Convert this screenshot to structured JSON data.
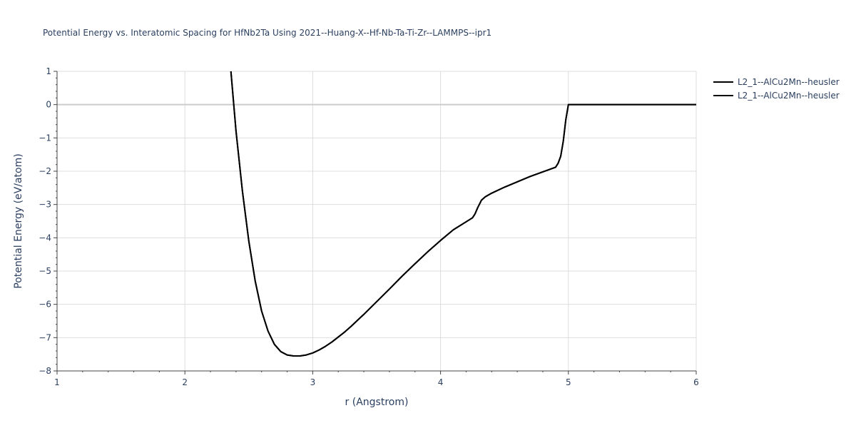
{
  "chart_data": {
    "type": "line",
    "title": "Potential Energy vs. Interatomic Spacing for HfNb2Ta Using 2021--Huang-X--Hf-Nb-Ta-Ti-Zr--LAMMPS--ipr1",
    "xlabel": "r (Angstrom)",
    "ylabel": "Potential Energy (eV/atom)",
    "xlim": [
      1,
      6
    ],
    "ylim": [
      -8,
      1
    ],
    "x_ticks": [
      1,
      2,
      3,
      4,
      5,
      6
    ],
    "y_ticks": [
      1,
      0,
      -1,
      -2,
      -3,
      -4,
      -5,
      -6,
      -7,
      -8
    ],
    "x_tick_labels": [
      "1",
      "2",
      "3",
      "4",
      "5",
      "6"
    ],
    "y_tick_labels": [
      "1",
      "0",
      "−1",
      "−2",
      "−3",
      "−4",
      "−5",
      "−6",
      "−7",
      "−8"
    ],
    "grid": true,
    "legend_position": "top-right",
    "line_color": "#000000",
    "series": [
      {
        "name": "L2_1--AlCu2Mn--heusler",
        "x": [
          2.36,
          2.4,
          2.45,
          2.5,
          2.55,
          2.6,
          2.65,
          2.7,
          2.75,
          2.8,
          2.85,
          2.9,
          2.95,
          3.0,
          3.05,
          3.1,
          3.15,
          3.2,
          3.25,
          3.3,
          3.4,
          3.5,
          3.6,
          3.7,
          3.8,
          3.9,
          4.0,
          4.1,
          4.2,
          4.25,
          4.27,
          4.29,
          4.31,
          4.32,
          4.35,
          4.4,
          4.5,
          4.6,
          4.7,
          4.8,
          4.9,
          4.92,
          4.94,
          4.96,
          4.98,
          5.0,
          5.1,
          5.5,
          6.0
        ],
        "y": [
          1.0,
          -0.8,
          -2.6,
          -4.1,
          -5.3,
          -6.2,
          -6.8,
          -7.2,
          -7.42,
          -7.52,
          -7.55,
          -7.55,
          -7.52,
          -7.46,
          -7.37,
          -7.26,
          -7.13,
          -6.98,
          -6.83,
          -6.66,
          -6.3,
          -5.92,
          -5.54,
          -5.15,
          -4.78,
          -4.42,
          -4.08,
          -3.76,
          -3.52,
          -3.4,
          -3.28,
          -3.1,
          -2.95,
          -2.87,
          -2.77,
          -2.66,
          -2.48,
          -2.32,
          -2.16,
          -2.02,
          -1.88,
          -1.76,
          -1.55,
          -1.1,
          -0.45,
          0.0,
          0.0,
          0.0,
          0.0
        ]
      },
      {
        "name": "L2_1--AlCu2Mn--heusler",
        "x": [
          2.36,
          2.4,
          2.45,
          2.5,
          2.55,
          2.6,
          2.65,
          2.7,
          2.75,
          2.8,
          2.85,
          2.9,
          2.95,
          3.0,
          3.05,
          3.1,
          3.15,
          3.2,
          3.25,
          3.3,
          3.4,
          3.5,
          3.6,
          3.7,
          3.8,
          3.9,
          4.0,
          4.1,
          4.2,
          4.25,
          4.27,
          4.29,
          4.31,
          4.32,
          4.35,
          4.4,
          4.5,
          4.6,
          4.7,
          4.8,
          4.9,
          4.92,
          4.94,
          4.96,
          4.98,
          5.0,
          5.1,
          5.5,
          6.0
        ],
        "y": [
          1.0,
          -0.8,
          -2.6,
          -4.1,
          -5.3,
          -6.2,
          -6.8,
          -7.2,
          -7.42,
          -7.52,
          -7.55,
          -7.55,
          -7.52,
          -7.46,
          -7.37,
          -7.26,
          -7.13,
          -6.98,
          -6.83,
          -6.66,
          -6.3,
          -5.92,
          -5.54,
          -5.15,
          -4.78,
          -4.42,
          -4.08,
          -3.76,
          -3.52,
          -3.4,
          -3.28,
          -3.1,
          -2.95,
          -2.87,
          -2.77,
          -2.66,
          -2.48,
          -2.32,
          -2.16,
          -2.02,
          -1.88,
          -1.76,
          -1.55,
          -1.1,
          -0.45,
          0.0,
          0.0,
          0.0,
          0.0
        ]
      }
    ]
  }
}
